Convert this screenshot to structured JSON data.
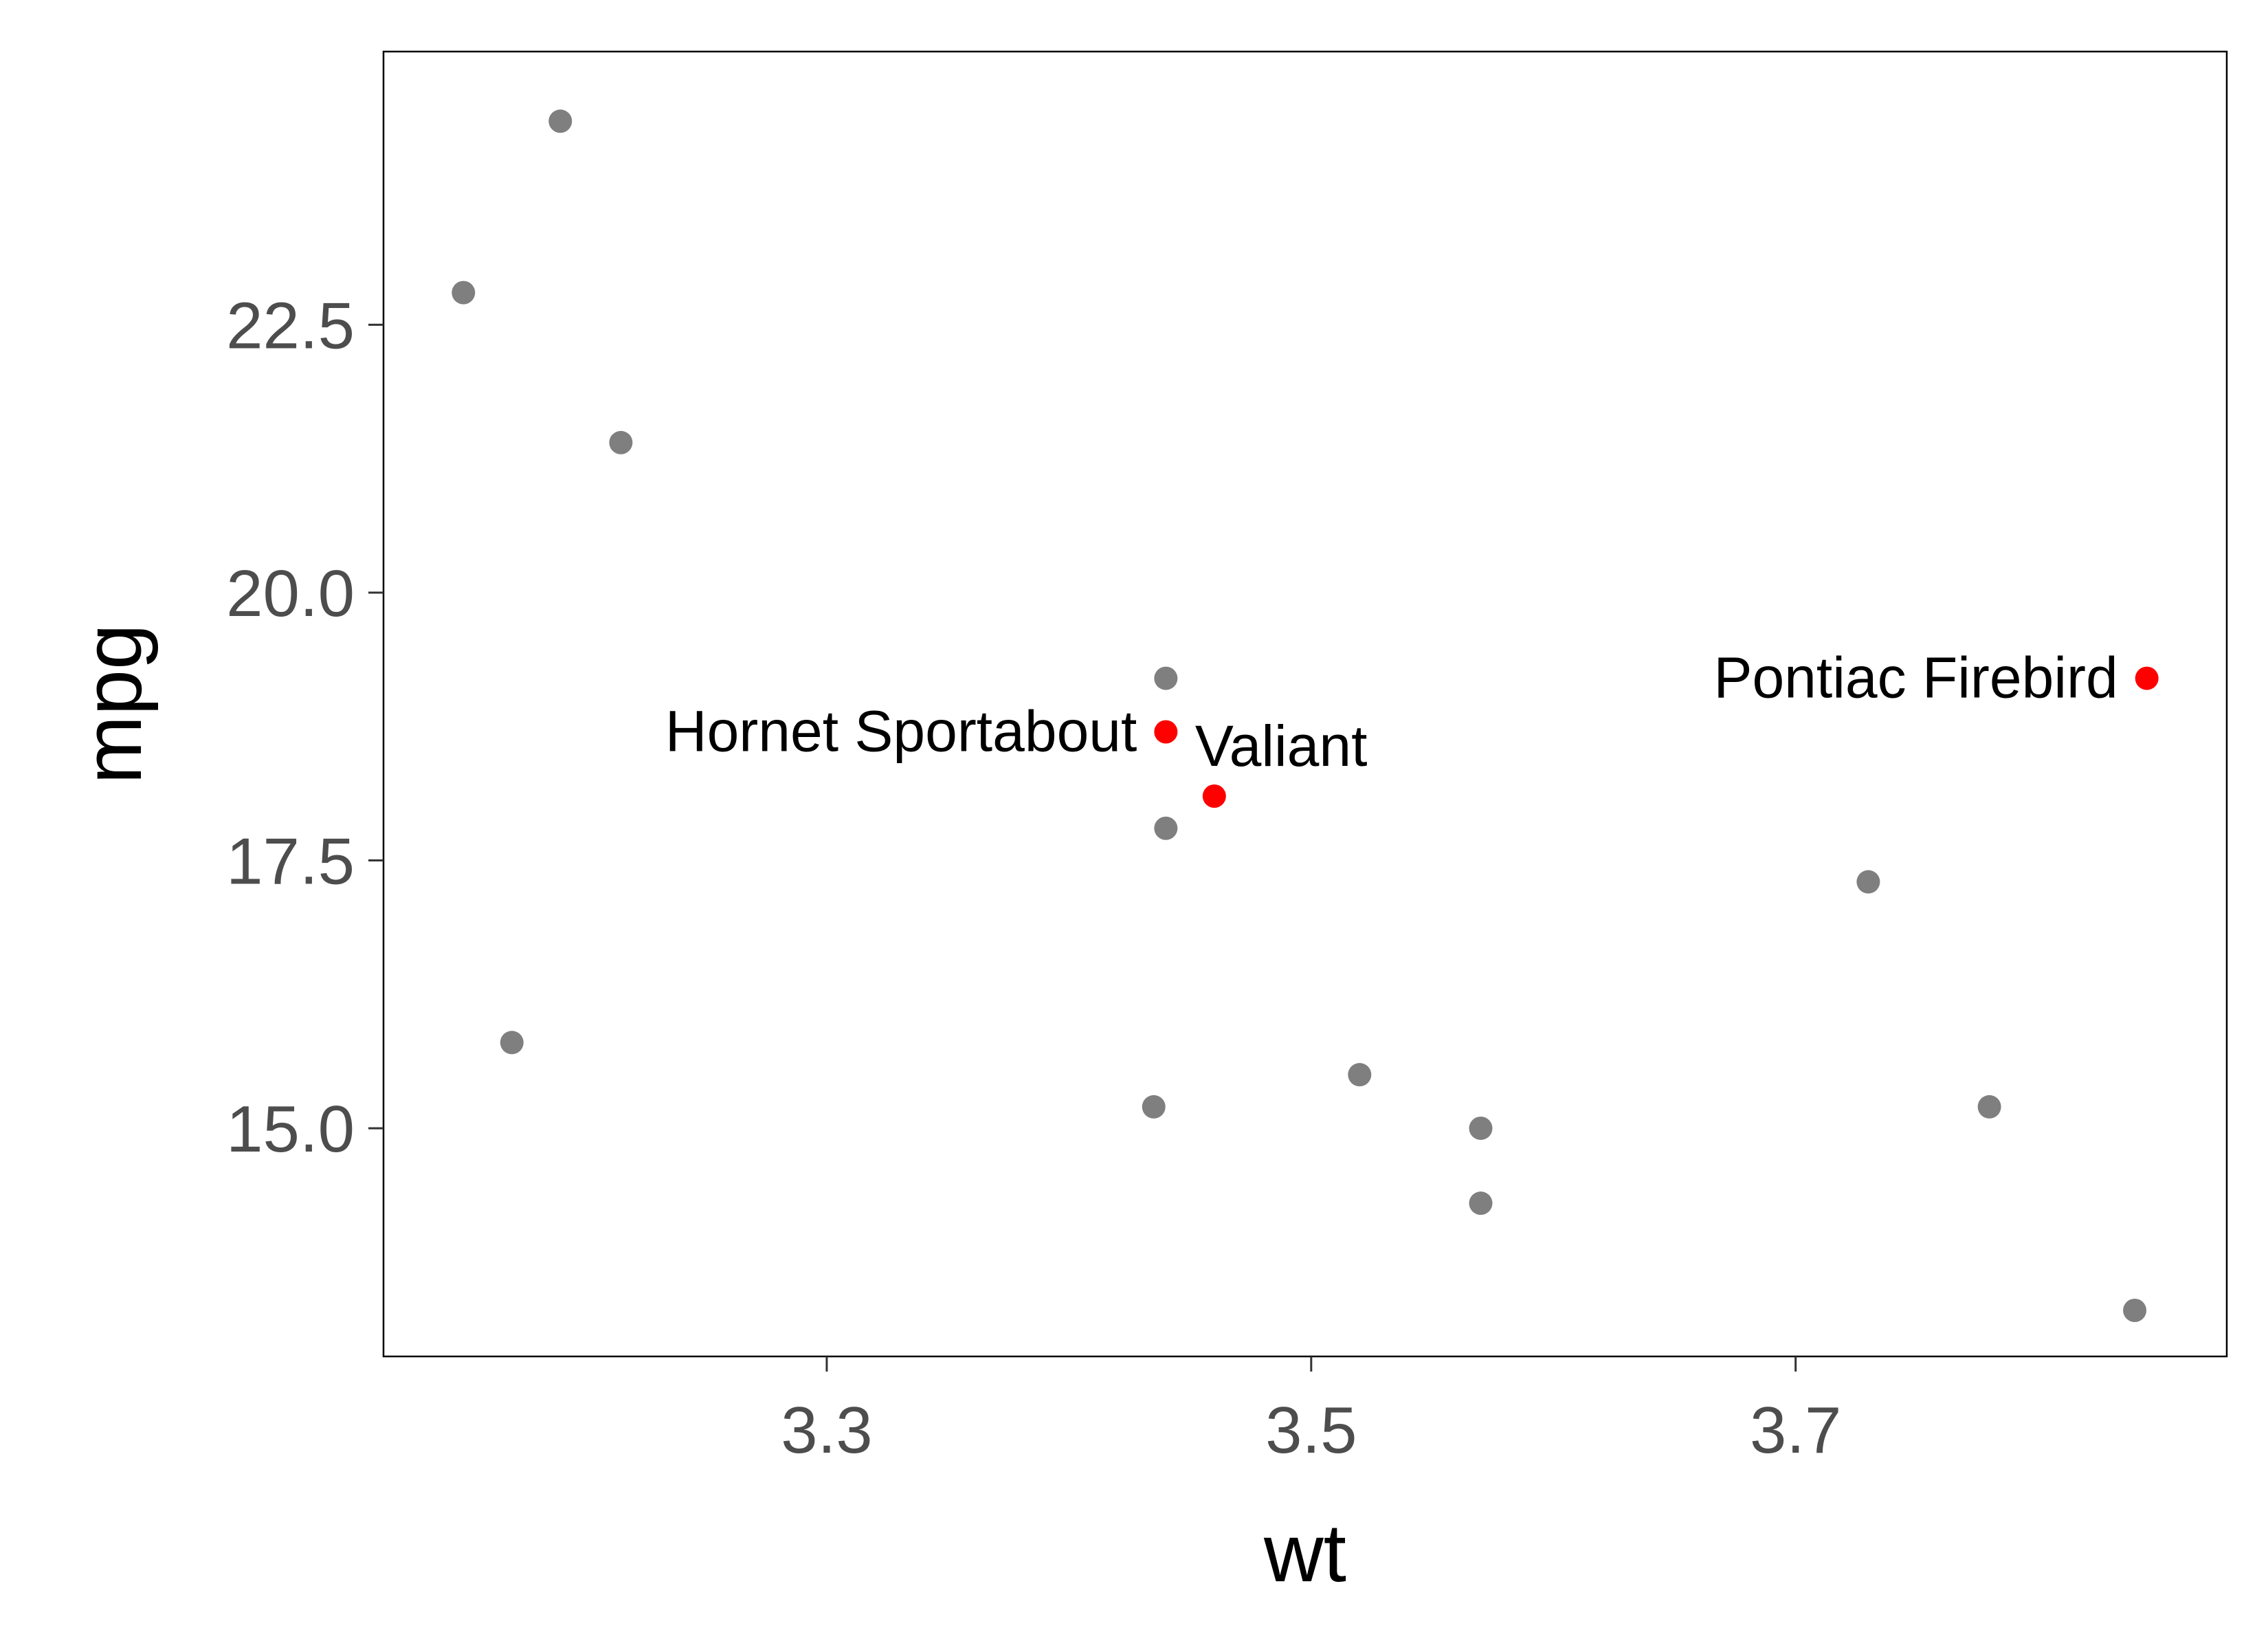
{
  "chart_data": {
    "type": "scatter",
    "title": "",
    "xlabel": "wt",
    "ylabel": "mpg",
    "xlim": [
      3.117,
      3.878
    ],
    "ylim": [
      12.87,
      25.05
    ],
    "xticks": [
      3.3,
      3.5,
      3.7
    ],
    "xtick_labels": [
      "3.3",
      "3.5",
      "3.7"
    ],
    "yticks": [
      15.0,
      17.5,
      20.0,
      22.5
    ],
    "ytick_labels": [
      "15.0",
      "17.5",
      "20.0",
      "22.5"
    ],
    "grid": false,
    "legend": "none",
    "colors": {
      "default": "#7f7f7f",
      "highlight": "#ff0000"
    },
    "points": [
      {
        "x": 3.15,
        "y": 22.8,
        "highlight": false,
        "label": ""
      },
      {
        "x": 3.19,
        "y": 24.4,
        "highlight": false,
        "label": ""
      },
      {
        "x": 3.17,
        "y": 15.8,
        "highlight": false,
        "label": ""
      },
      {
        "x": 3.215,
        "y": 21.4,
        "highlight": false,
        "label": ""
      },
      {
        "x": 3.435,
        "y": 15.2,
        "highlight": false,
        "label": ""
      },
      {
        "x": 3.44,
        "y": 19.2,
        "highlight": false,
        "label": ""
      },
      {
        "x": 3.44,
        "y": 17.8,
        "highlight": false,
        "label": ""
      },
      {
        "x": 3.44,
        "y": 18.7,
        "highlight": true,
        "label": "Hornet Sportabout",
        "label_side": "left"
      },
      {
        "x": 3.46,
        "y": 18.1,
        "highlight": true,
        "label": "Valiant",
        "label_side": "above-right"
      },
      {
        "x": 3.52,
        "y": 15.5,
        "highlight": false,
        "label": ""
      },
      {
        "x": 3.57,
        "y": 15.0,
        "highlight": false,
        "label": ""
      },
      {
        "x": 3.57,
        "y": 14.3,
        "highlight": false,
        "label": ""
      },
      {
        "x": 3.73,
        "y": 17.3,
        "highlight": false,
        "label": ""
      },
      {
        "x": 3.78,
        "y": 15.2,
        "highlight": false,
        "label": ""
      },
      {
        "x": 3.84,
        "y": 13.3,
        "highlight": false,
        "label": ""
      },
      {
        "x": 3.845,
        "y": 19.2,
        "highlight": true,
        "label": "Pontiac Firebird",
        "label_side": "left"
      }
    ]
  }
}
